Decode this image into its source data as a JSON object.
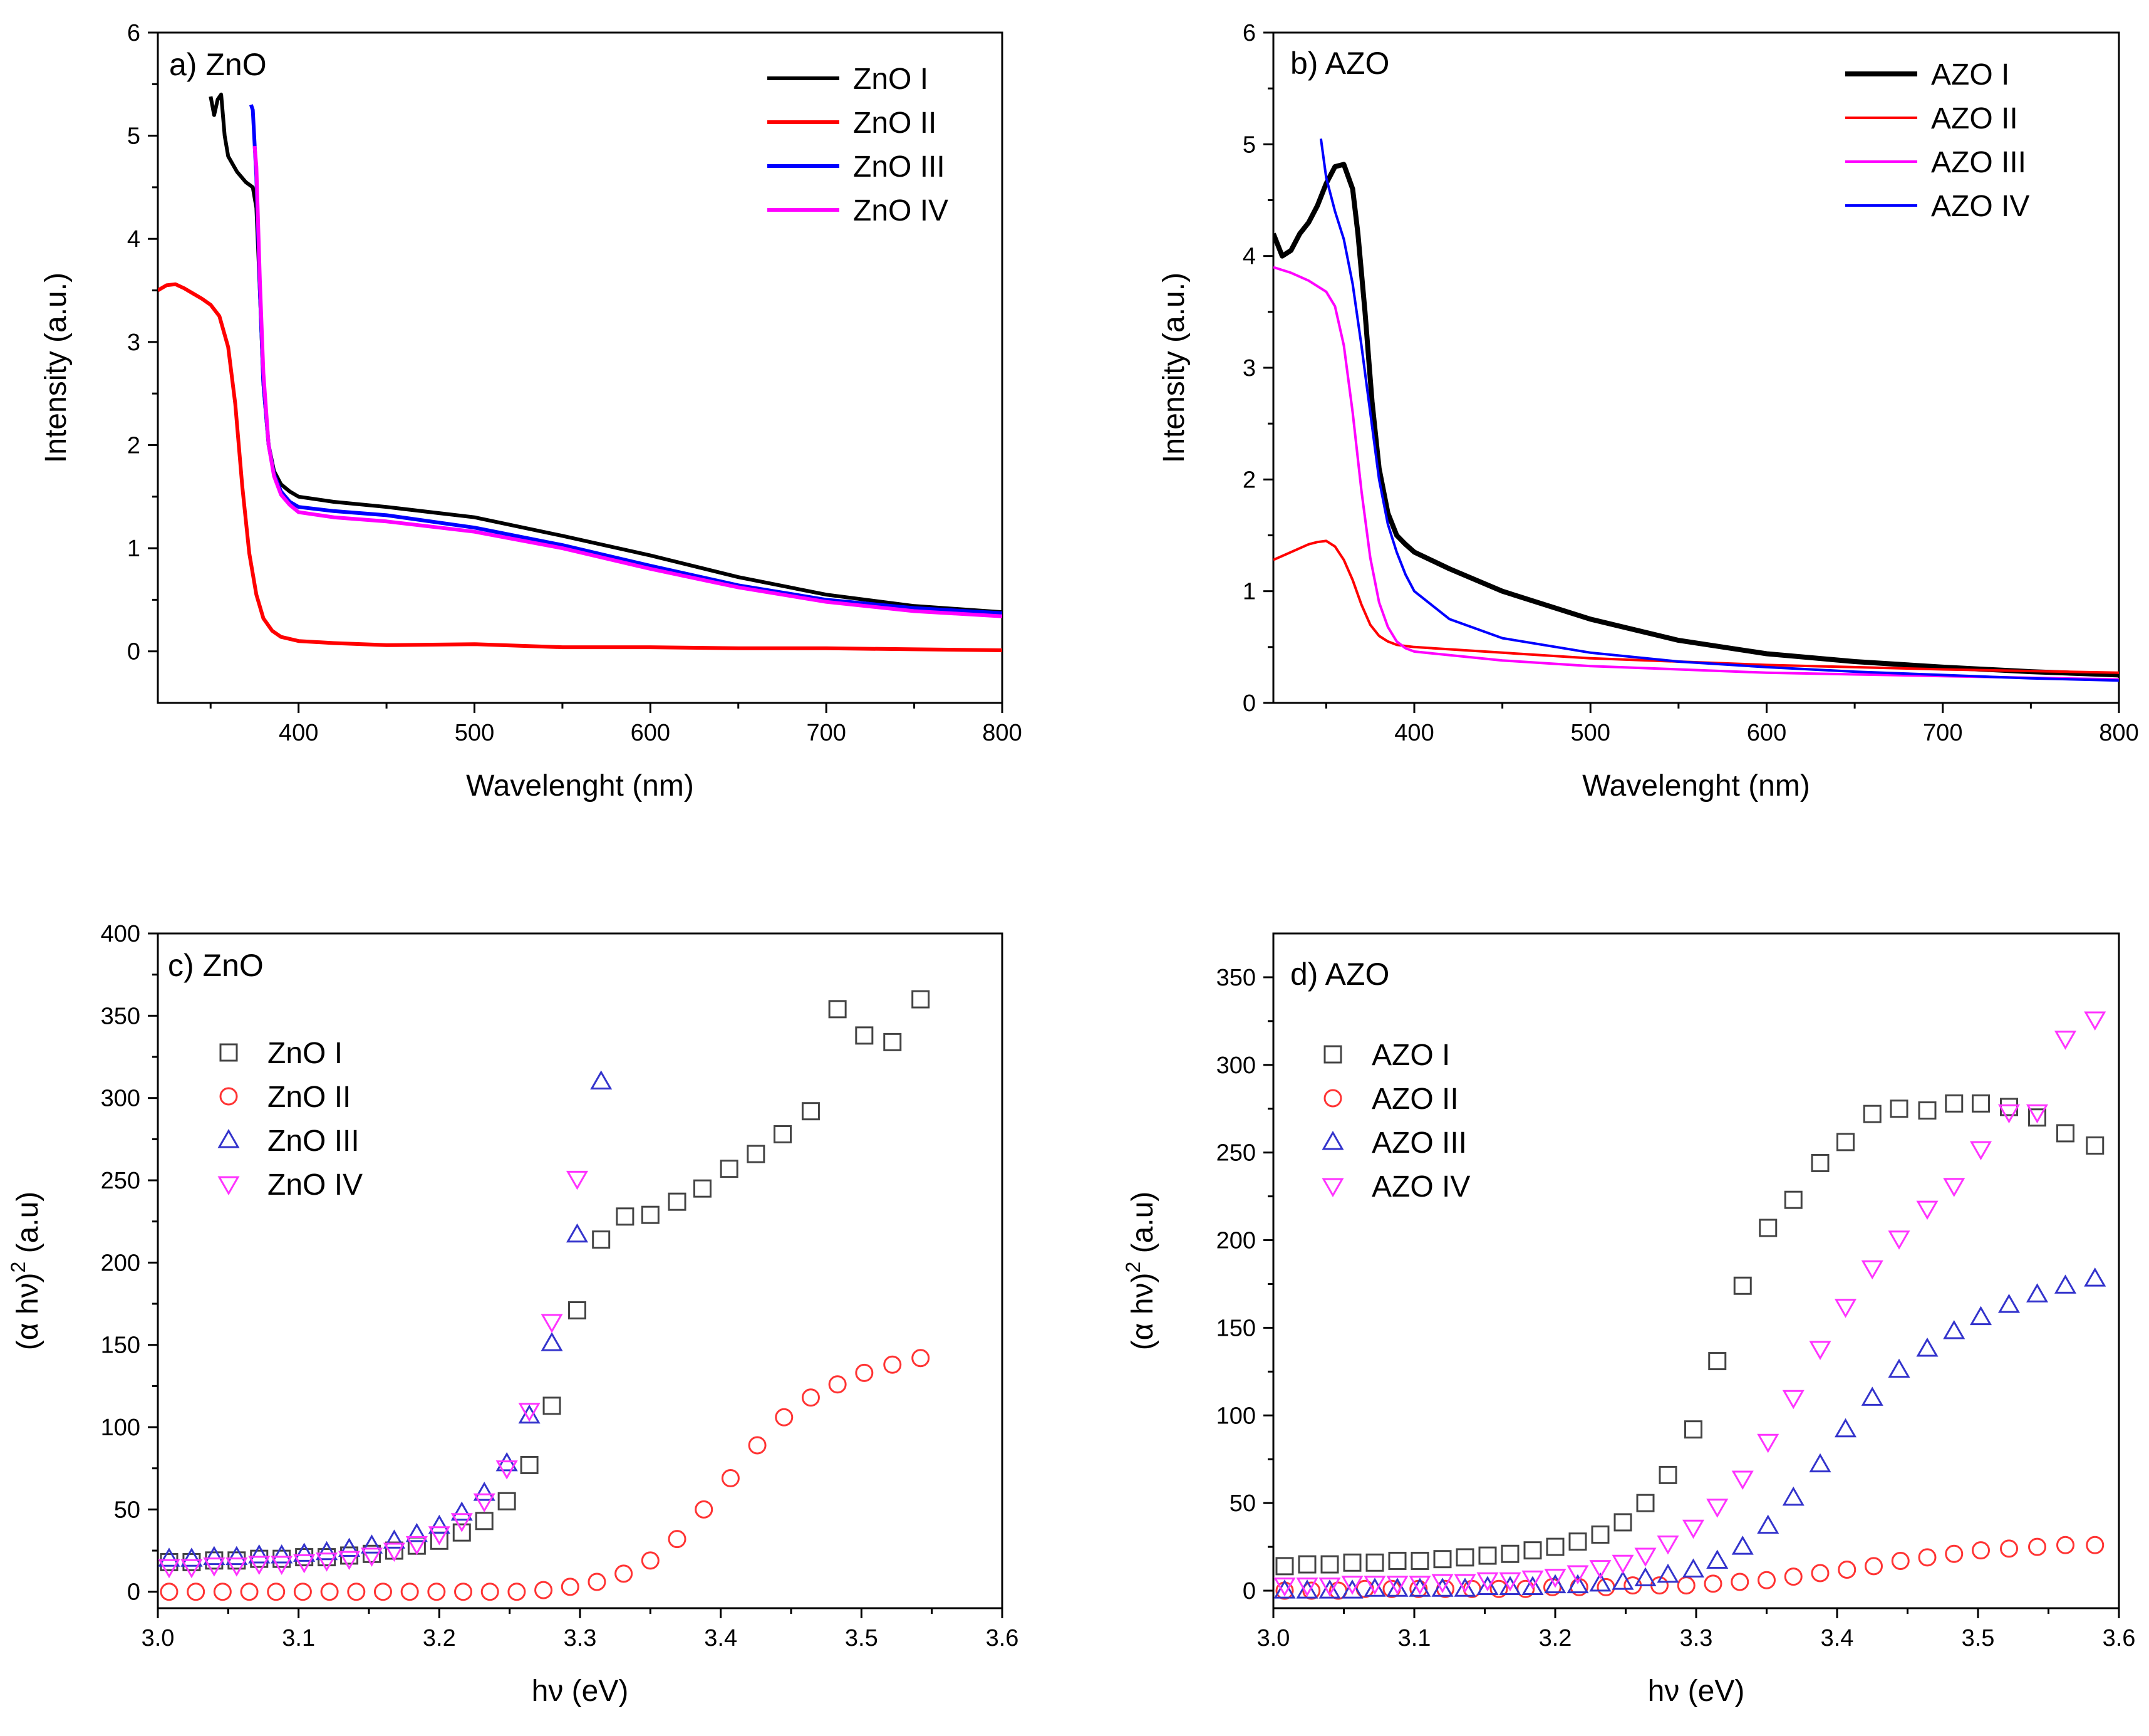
{
  "chart_data": [
    {
      "id": "a",
      "type": "line",
      "title": "a) ZnO",
      "xlabel": "Wavelenght (nm)",
      "ylabel": "Intensity (a.u.)",
      "xlim": [
        320,
        800
      ],
      "ylim": [
        -0.5,
        6
      ],
      "xticks": [
        400,
        500,
        600,
        700,
        800
      ],
      "yticks": [
        0,
        1,
        2,
        3,
        4,
        5,
        6
      ],
      "legend": "top-right",
      "series": [
        {
          "name": "ZnO I",
          "color": "#000000",
          "width": 6,
          "x": [
            350,
            352,
            354,
            356,
            358,
            360,
            365,
            370,
            374,
            376,
            378,
            380,
            383,
            386,
            390,
            395,
            400,
            420,
            450,
            480,
            500,
            550,
            600,
            650,
            700,
            750,
            800
          ],
          "y": [
            5.38,
            5.2,
            5.35,
            5.4,
            5.0,
            4.8,
            4.65,
            4.55,
            4.5,
            4.3,
            3.5,
            2.6,
            2.0,
            1.75,
            1.62,
            1.55,
            1.5,
            1.45,
            1.4,
            1.34,
            1.3,
            1.12,
            0.93,
            0.72,
            0.55,
            0.44,
            0.38
          ]
        },
        {
          "name": "ZnO II",
          "color": "#ff0000",
          "width": 6,
          "x": [
            320,
            325,
            330,
            335,
            340,
            345,
            350,
            355,
            360,
            364,
            368,
            372,
            376,
            380,
            385,
            390,
            400,
            420,
            450,
            500,
            550,
            600,
            650,
            700,
            750,
            800
          ],
          "y": [
            3.5,
            3.55,
            3.56,
            3.52,
            3.47,
            3.42,
            3.36,
            3.25,
            2.95,
            2.4,
            1.6,
            0.95,
            0.55,
            0.32,
            0.2,
            0.14,
            0.1,
            0.08,
            0.06,
            0.07,
            0.04,
            0.04,
            0.03,
            0.03,
            0.02,
            0.01
          ]
        },
        {
          "name": "ZnO III",
          "color": "#0000ff",
          "width": 6,
          "x": [
            373,
            374,
            376,
            378,
            380,
            383,
            386,
            390,
            395,
            400,
            420,
            450,
            500,
            550,
            600,
            650,
            700,
            750,
            800
          ],
          "y": [
            5.3,
            5.25,
            4.6,
            3.5,
            2.6,
            2.0,
            1.72,
            1.55,
            1.45,
            1.4,
            1.36,
            1.32,
            1.2,
            1.03,
            0.83,
            0.64,
            0.5,
            0.42,
            0.37
          ]
        },
        {
          "name": "ZnO IV",
          "color": "#ff00ff",
          "width": 6,
          "x": [
            375,
            376,
            378,
            380,
            383,
            386,
            390,
            395,
            400,
            420,
            450,
            500,
            550,
            600,
            650,
            700,
            750,
            800
          ],
          "y": [
            4.9,
            4.7,
            3.6,
            2.7,
            2.0,
            1.7,
            1.52,
            1.42,
            1.35,
            1.3,
            1.26,
            1.16,
            1.0,
            0.8,
            0.62,
            0.48,
            0.39,
            0.34
          ]
        }
      ]
    },
    {
      "id": "b",
      "type": "line",
      "title": "b) AZO",
      "xlabel": "Wavelenght (nm)",
      "ylabel": "Intensity (a.u.)",
      "xlim": [
        320,
        800
      ],
      "ylim": [
        0,
        6
      ],
      "xticks": [
        400,
        500,
        600,
        700,
        800
      ],
      "yticks": [
        0,
        1,
        2,
        3,
        4,
        5,
        6
      ],
      "legend": "top-right",
      "series": [
        {
          "name": "AZO I",
          "color": "#000000",
          "width": 8,
          "x": [
            320,
            325,
            330,
            335,
            340,
            345,
            350,
            355,
            360,
            365,
            368,
            372,
            376,
            380,
            385,
            390,
            395,
            400,
            420,
            450,
            500,
            550,
            600,
            650,
            700,
            750,
            800
          ],
          "y": [
            4.2,
            4.0,
            4.05,
            4.2,
            4.3,
            4.45,
            4.65,
            4.8,
            4.82,
            4.6,
            4.2,
            3.5,
            2.7,
            2.1,
            1.7,
            1.5,
            1.42,
            1.35,
            1.2,
            1.0,
            0.75,
            0.56,
            0.44,
            0.37,
            0.32,
            0.28,
            0.25
          ]
        },
        {
          "name": "AZO II",
          "color": "#ff0000",
          "width": 4,
          "x": [
            320,
            330,
            340,
            345,
            350,
            355,
            360,
            365,
            370,
            375,
            380,
            385,
            390,
            400,
            450,
            500,
            600,
            700,
            800
          ],
          "y": [
            1.28,
            1.35,
            1.42,
            1.44,
            1.45,
            1.4,
            1.28,
            1.1,
            0.88,
            0.7,
            0.6,
            0.55,
            0.52,
            0.5,
            0.45,
            0.4,
            0.34,
            0.3,
            0.27
          ]
        },
        {
          "name": "AZO III",
          "color": "#ff00ff",
          "width": 4,
          "x": [
            320,
            330,
            340,
            350,
            355,
            360,
            365,
            370,
            375,
            380,
            385,
            390,
            395,
            400,
            450,
            500,
            600,
            700,
            800
          ],
          "y": [
            3.9,
            3.85,
            3.78,
            3.68,
            3.55,
            3.2,
            2.6,
            1.9,
            1.3,
            0.9,
            0.68,
            0.55,
            0.49,
            0.46,
            0.38,
            0.33,
            0.27,
            0.24,
            0.21
          ]
        },
        {
          "name": "AZO IV",
          "color": "#0000ff",
          "width": 4,
          "x": [
            347,
            350,
            355,
            360,
            365,
            370,
            375,
            380,
            385,
            390,
            395,
            400,
            420,
            450,
            500,
            550,
            600,
            650,
            700,
            750,
            800
          ],
          "y": [
            5.05,
            4.7,
            4.4,
            4.15,
            3.75,
            3.2,
            2.6,
            2.0,
            1.6,
            1.35,
            1.15,
            1.0,
            0.75,
            0.58,
            0.45,
            0.37,
            0.32,
            0.28,
            0.25,
            0.22,
            0.2
          ]
        }
      ]
    },
    {
      "id": "c",
      "type": "scatter",
      "title": "c) ZnO",
      "xlabel": "hν (eV)",
      "ylabel_main": "(α hν)",
      "ylabel_sup": "2",
      "ylabel_tail": " (a.u)",
      "xlim": [
        3.0,
        3.6
      ],
      "ylim": [
        -10,
        400
      ],
      "xticks": [
        "3.0",
        "3.1",
        "3.2",
        "3.3",
        "3.4",
        "3.5",
        "3.6"
      ],
      "yticks": [
        0,
        50,
        100,
        150,
        200,
        250,
        300,
        350,
        400
      ],
      "legend": "top-left",
      "series": [
        {
          "name": "ZnO I",
          "marker": "square",
          "color": "#444444",
          "x": [
            3.008,
            3.024,
            3.04,
            3.056,
            3.072,
            3.088,
            3.104,
            3.12,
            3.136,
            3.152,
            3.168,
            3.184,
            3.2,
            3.216,
            3.232,
            3.248,
            3.264,
            3.28,
            3.298,
            3.315,
            3.332,
            3.35,
            3.369,
            3.387,
            3.406,
            3.425,
            3.444,
            3.464,
            3.483,
            3.502,
            3.522,
            3.542
          ],
          "y": [
            18,
            18,
            19,
            19,
            20,
            20,
            21,
            21,
            22,
            23,
            25,
            28,
            31,
            36,
            43,
            55,
            77,
            113,
            171,
            214,
            228,
            229,
            237,
            245,
            257,
            266,
            278,
            292,
            354,
            338,
            334,
            360
          ]
        },
        {
          "name": "ZnO II",
          "marker": "circle",
          "color": "#ff3333",
          "x": [
            3.008,
            3.027,
            3.046,
            3.065,
            3.084,
            3.103,
            3.122,
            3.141,
            3.16,
            3.179,
            3.198,
            3.217,
            3.236,
            3.255,
            3.274,
            3.293,
            3.312,
            3.331,
            3.35,
            3.369,
            3.388,
            3.407,
            3.426,
            3.445,
            3.464,
            3.483,
            3.502,
            3.522,
            3.542
          ],
          "y": [
            0,
            0,
            0,
            0,
            0,
            0,
            0,
            0,
            0,
            0,
            0,
            0,
            0,
            0,
            1,
            3,
            6,
            11,
            19,
            32,
            50,
            69,
            89,
            106,
            118,
            126,
            133,
            138,
            142
          ]
        },
        {
          "name": "ZnO III",
          "marker": "triangle-up",
          "color": "#3333cc",
          "x": [
            3.008,
            3.024,
            3.04,
            3.056,
            3.072,
            3.088,
            3.104,
            3.12,
            3.136,
            3.152,
            3.168,
            3.184,
            3.2,
            3.216,
            3.232,
            3.248,
            3.264,
            3.28,
            3.298,
            3.315
          ],
          "y": [
            20,
            20,
            21,
            21,
            22,
            22,
            23,
            24,
            26,
            28,
            31,
            35,
            40,
            48,
            60,
            78,
            107,
            151,
            217,
            310
          ]
        },
        {
          "name": "ZnO IV",
          "marker": "triangle-down",
          "color": "#ff33ff",
          "x": [
            3.008,
            3.024,
            3.04,
            3.056,
            3.072,
            3.088,
            3.104,
            3.12,
            3.136,
            3.152,
            3.168,
            3.184,
            3.2,
            3.216,
            3.232,
            3.248,
            3.264,
            3.28,
            3.298
          ],
          "y": [
            15,
            15,
            16,
            16,
            17,
            17,
            18,
            19,
            20,
            22,
            25,
            29,
            35,
            43,
            55,
            75,
            110,
            164,
            251
          ]
        }
      ]
    },
    {
      "id": "d",
      "type": "scatter",
      "title": "d) AZO",
      "xlabel": "hν (eV)",
      "ylabel_main": "(α hν)",
      "ylabel_sup": "2",
      "ylabel_tail": " (a.u)",
      "xlim": [
        3.0,
        3.6
      ],
      "ylim": [
        -10,
        375
      ],
      "xticks": [
        "3.0",
        "3.1",
        "3.2",
        "3.3",
        "3.4",
        "3.5",
        "3.6"
      ],
      "yticks": [
        0,
        50,
        100,
        150,
        200,
        250,
        300,
        350
      ],
      "legend": "top-left",
      "series": [
        {
          "name": "AZO I",
          "marker": "square",
          "color": "#444444",
          "x": [
            3.008,
            3.024,
            3.04,
            3.056,
            3.072,
            3.088,
            3.104,
            3.12,
            3.136,
            3.152,
            3.168,
            3.184,
            3.2,
            3.216,
            3.232,
            3.248,
            3.264,
            3.28,
            3.298,
            3.315,
            3.333,
            3.351,
            3.369,
            3.388,
            3.406,
            3.425,
            3.444,
            3.464,
            3.483,
            3.502,
            3.522,
            3.542,
            3.562,
            3.583
          ],
          "y": [
            14,
            15,
            15,
            16,
            16,
            17,
            17,
            18,
            19,
            20,
            21,
            23,
            25,
            28,
            32,
            39,
            50,
            66,
            92,
            131,
            174,
            207,
            223,
            244,
            256,
            272,
            275,
            274,
            278,
            278,
            276,
            270,
            261,
            254
          ]
        },
        {
          "name": "AZO II",
          "marker": "circle",
          "color": "#ff3333",
          "x": [
            3.008,
            3.027,
            3.046,
            3.065,
            3.084,
            3.103,
            3.122,
            3.141,
            3.16,
            3.179,
            3.198,
            3.217,
            3.236,
            3.255,
            3.274,
            3.293,
            3.312,
            3.331,
            3.35,
            3.369,
            3.388,
            3.407,
            3.426,
            3.445,
            3.464,
            3.483,
            3.502,
            3.522,
            3.542,
            3.562,
            3.583
          ],
          "y": [
            0,
            0,
            0,
            1,
            1,
            1,
            1,
            1,
            1,
            1,
            2,
            2,
            2,
            3,
            3,
            3,
            4,
            5,
            6,
            8,
            10,
            12,
            14,
            17,
            19,
            21,
            23,
            24,
            25,
            26,
            26
          ]
        },
        {
          "name": "AZO III",
          "marker": "triangle-up",
          "color": "#3333cc",
          "x": [
            3.008,
            3.024,
            3.04,
            3.056,
            3.072,
            3.088,
            3.104,
            3.12,
            3.136,
            3.152,
            3.168,
            3.184,
            3.2,
            3.216,
            3.232,
            3.248,
            3.264,
            3.28,
            3.298,
            3.315,
            3.333,
            3.351,
            3.369,
            3.388,
            3.406,
            3.425,
            3.444,
            3.464,
            3.483,
            3.502,
            3.522,
            3.542,
            3.562,
            3.583
          ],
          "y": [
            0,
            0,
            0,
            0,
            1,
            1,
            1,
            1,
            1,
            2,
            2,
            2,
            3,
            3,
            4,
            5,
            7,
            9,
            12,
            17,
            25,
            37,
            53,
            72,
            92,
            110,
            126,
            138,
            148,
            156,
            163,
            169,
            174,
            178
          ]
        },
        {
          "name": "AZO IV",
          "marker": "triangle-down",
          "color": "#ff33ff",
          "x": [
            3.008,
            3.024,
            3.04,
            3.056,
            3.072,
            3.088,
            3.104,
            3.12,
            3.136,
            3.152,
            3.168,
            3.184,
            3.2,
            3.216,
            3.232,
            3.248,
            3.264,
            3.28,
            3.298,
            3.315,
            3.333,
            3.351,
            3.369,
            3.388,
            3.406,
            3.425,
            3.444,
            3.464,
            3.483,
            3.502,
            3.522,
            3.542,
            3.562,
            3.583
          ],
          "y": [
            3,
            3,
            3,
            4,
            4,
            4,
            4,
            5,
            5,
            6,
            6,
            7,
            8,
            10,
            13,
            16,
            20,
            27,
            36,
            48,
            64,
            85,
            110,
            138,
            162,
            184,
            201,
            218,
            231,
            252,
            273,
            273,
            315,
            326
          ]
        }
      ]
    }
  ]
}
